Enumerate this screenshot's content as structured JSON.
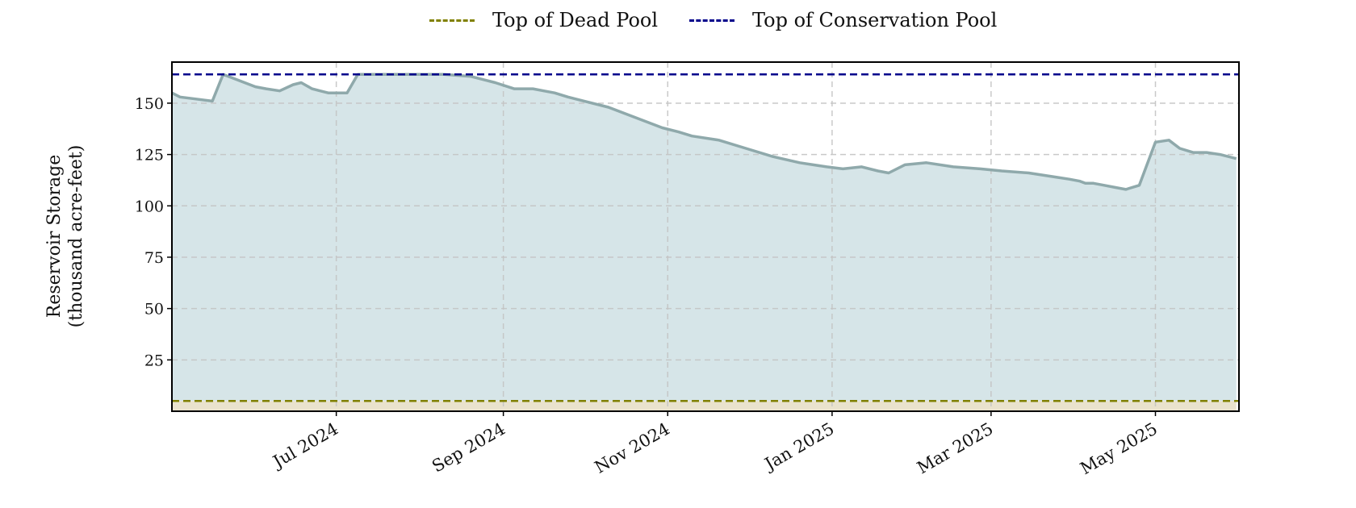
{
  "chart_data": {
    "type": "area",
    "ylabel": [
      "Reservoir Storage",
      "(thousand acre-feet)"
    ],
    "xlabel": "",
    "xlim": [
      "2024-05-01",
      "2025-06-01"
    ],
    "ylim": [
      0,
      170
    ],
    "yticks": [
      25,
      50,
      75,
      100,
      125,
      150
    ],
    "xticks": [
      {
        "date": "2024-07-01",
        "label": "Jul 2024"
      },
      {
        "date": "2024-09-01",
        "label": "Sep 2024"
      },
      {
        "date": "2024-11-01",
        "label": "Nov 2024"
      },
      {
        "date": "2025-01-01",
        "label": "Jan 2025"
      },
      {
        "date": "2025-03-01",
        "label": "Mar 2025"
      },
      {
        "date": "2025-05-01",
        "label": "May 2025"
      }
    ],
    "grid": true,
    "legend_position": "top-center",
    "reference_lines": [
      {
        "name": "Top of Dead Pool",
        "value": 5,
        "color": "#808000"
      },
      {
        "name": "Top of Conservation Pool",
        "value": 164,
        "color": "#00008b"
      }
    ],
    "series": [
      {
        "color": "#8fa9ab",
        "fill": "#d6e5e8",
        "x": [
          "2024-05-01",
          "2024-05-04",
          "2024-05-10",
          "2024-05-16",
          "2024-05-20",
          "2024-05-24",
          "2024-05-28",
          "2024-06-01",
          "2024-06-05",
          "2024-06-10",
          "2024-06-15",
          "2024-06-18",
          "2024-06-22",
          "2024-06-25",
          "2024-06-28",
          "2024-07-01",
          "2024-07-05",
          "2024-07-09",
          "2024-07-13",
          "2024-07-15",
          "2024-07-20",
          "2024-07-30",
          "2024-08-10",
          "2024-08-20",
          "2024-08-26",
          "2024-08-29",
          "2024-09-05",
          "2024-09-12",
          "2024-09-16",
          "2024-09-20",
          "2024-09-25",
          "2024-10-01",
          "2024-10-10",
          "2024-10-20",
          "2024-10-30",
          "2024-11-05",
          "2024-11-10",
          "2024-11-20",
          "2024-11-30",
          "2024-12-10",
          "2024-12-20",
          "2024-12-30",
          "2025-01-05",
          "2025-01-12",
          "2025-01-18",
          "2025-01-22",
          "2025-01-28",
          "2025-02-05",
          "2025-02-15",
          "2025-02-25",
          "2025-03-05",
          "2025-03-15",
          "2025-03-25",
          "2025-03-30",
          "2025-04-03",
          "2025-04-05",
          "2025-04-08",
          "2025-04-12",
          "2025-04-16",
          "2025-04-20",
          "2025-04-25",
          "2025-05-01",
          "2025-05-06",
          "2025-05-10",
          "2025-05-15",
          "2025-05-20",
          "2025-05-25",
          "2025-05-31"
        ],
        "y": [
          155,
          153,
          152,
          151,
          164,
          162,
          160,
          158,
          157,
          156,
          159,
          160,
          157,
          156,
          155,
          155,
          155,
          164,
          164,
          164,
          164,
          164,
          164,
          163,
          161,
          160,
          157,
          157,
          156,
          155,
          153,
          151,
          148,
          143,
          138,
          136,
          134,
          132,
          128,
          124,
          121,
          119,
          118,
          119,
          117,
          116,
          120,
          121,
          119,
          118,
          117,
          116,
          114,
          113,
          112,
          111,
          111,
          110,
          109,
          108,
          110,
          131,
          132,
          128,
          126,
          126,
          125,
          123
        ]
      }
    ]
  }
}
